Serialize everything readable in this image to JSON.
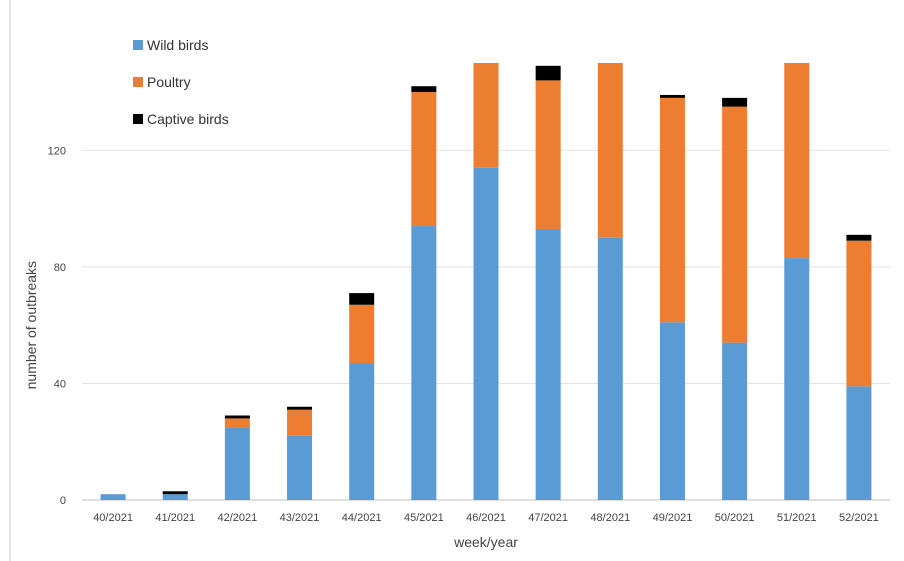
{
  "chart_data": {
    "type": "bar",
    "stacked": true,
    "xlabel": "week/year",
    "ylabel": "number of outbreaks",
    "categories": [
      "40/2021",
      "41/2021",
      "42/2021",
      "43/2021",
      "44/2021",
      "45/2021",
      "46/2021",
      "47/2021",
      "48/2021",
      "49/2021",
      "50/2021",
      "51/2021",
      "52/2021"
    ],
    "yticks": [
      0,
      40,
      80,
      120
    ],
    "ylim": [
      0,
      150
    ],
    "grid": true,
    "legend_position": "top-left",
    "series": [
      {
        "name": "Wild birds",
        "color": "#5b9bd5",
        "values": [
          2,
          2,
          25,
          22,
          47,
          94,
          114,
          93,
          90,
          61,
          54,
          83,
          39
        ]
      },
      {
        "name": "Poultry",
        "color": "#ed7d31",
        "values": [
          0,
          0,
          3,
          9,
          20,
          46,
          50,
          51,
          60,
          77,
          81,
          67,
          50
        ]
      },
      {
        "name": "Captive birds",
        "color": "#000000",
        "values": [
          0,
          1,
          1,
          1,
          4,
          2,
          0,
          5,
          0,
          1,
          3,
          0,
          2
        ]
      }
    ]
  }
}
